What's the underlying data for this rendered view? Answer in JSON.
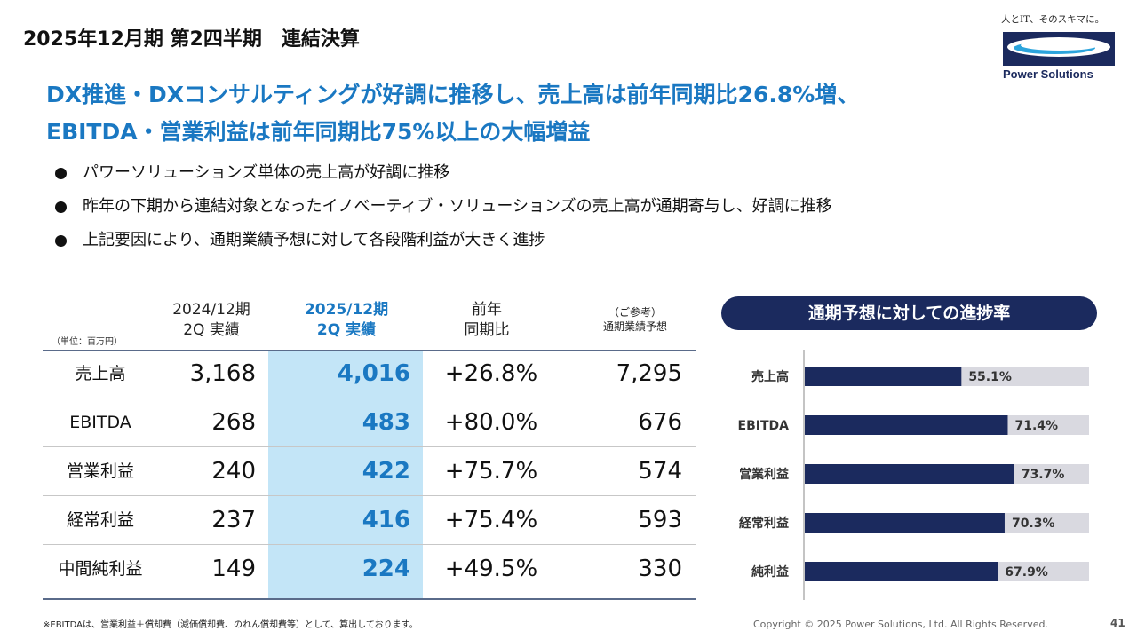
{
  "header": {
    "title": "2025年12月期 第2四半期　連結決算"
  },
  "logo": {
    "tagline": "人とIT、そのスキマに。",
    "name": "Power Solutions",
    "colors": {
      "navy": "#1b2a5e",
      "cyan": "#2ba4dc"
    }
  },
  "headline": {
    "line1": "DX推進・DXコンサルティングが好調に推移し、売上高は前年同期比26.8%増、",
    "line2": "EBITDA・営業利益は前年同期比75%以上の大幅増益"
  },
  "bullets": [
    "パワーソリューションズ単体の売上高が好調に推移",
    "昨年の下期から連結対象となったイノベーティブ・ソリューションズの売上高が通期寄与し、好調に推移",
    "上記要因により、通期業績予想に対して各段階利益が大きく進捗"
  ],
  "table": {
    "unit": "（単位：百万円）",
    "headers": {
      "prev": "2024/12期\n2Q 実績",
      "cur": "2025/12期\n2Q 実績",
      "yoy": "前年\n同期比",
      "forecast": "（ご参考）\n通期業績予想"
    },
    "rows": [
      {
        "label": "売上高",
        "prev": "3,168",
        "cur": "4,016",
        "yoy": "+26.8%",
        "forecast": "7,295"
      },
      {
        "label": "EBITDA",
        "prev": "268",
        "cur": "483",
        "yoy": "+80.0%",
        "forecast": "676"
      },
      {
        "label": "営業利益",
        "prev": "240",
        "cur": "422",
        "yoy": "+75.7%",
        "forecast": "574"
      },
      {
        "label": "経常利益",
        "prev": "237",
        "cur": "416",
        "yoy": "+75.4%",
        "forecast": "593"
      },
      {
        "label": "中間純利益",
        "prev": "149",
        "cur": "224",
        "yoy": "+49.5%",
        "forecast": "330"
      }
    ]
  },
  "progress": {
    "title": "通期予想に対しての進捗率"
  },
  "chart_data": {
    "type": "bar",
    "orientation": "horizontal",
    "categories": [
      "売上高",
      "EBITDA",
      "営業利益",
      "経常利益",
      "純利益"
    ],
    "values": [
      55.1,
      71.4,
      73.7,
      70.3,
      67.9
    ],
    "value_labels": [
      "55.1%",
      "71.4%",
      "73.7%",
      "70.3%",
      "67.9%"
    ],
    "xlim": [
      0,
      100
    ],
    "unit": "%",
    "grid": false,
    "legend": "none",
    "colors": {
      "bar": "#1b2a5e",
      "track": "#d9d9e0",
      "label_text": "#333333"
    }
  },
  "footer": {
    "note": "※EBITDAは、営業利益＋償却費（減価償却費、のれん償却費等）として、算出しております。",
    "copyright": "Copyright © 2025 Power Solutions, Ltd. All Rights Reserved.",
    "page": "41"
  }
}
